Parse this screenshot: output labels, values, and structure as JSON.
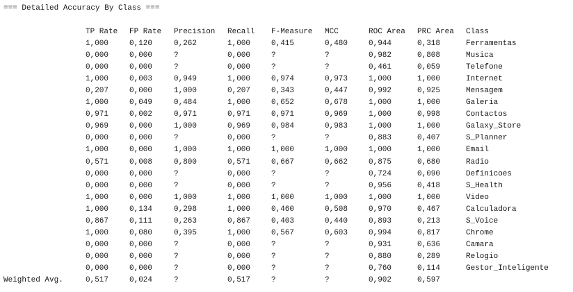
{
  "title": "=== Detailed Accuracy By Class ===",
  "headers": [
    "TP Rate",
    "FP Rate",
    "Precision",
    "Recall",
    "F-Measure",
    "MCC",
    "ROC Area",
    "PRC Area",
    "Class"
  ],
  "rows": [
    [
      "1,000",
      "0,120",
      "0,262",
      "1,000",
      "0,415",
      "0,480",
      "0,944",
      "0,318",
      "Ferramentas"
    ],
    [
      "0,000",
      "0,000",
      "?",
      "0,000",
      "?",
      "?",
      "0,982",
      "0,808",
      "Musica"
    ],
    [
      "0,000",
      "0,000",
      "?",
      "0,000",
      "?",
      "?",
      "0,461",
      "0,059",
      "Telefone"
    ],
    [
      "1,000",
      "0,003",
      "0,949",
      "1,000",
      "0,974",
      "0,973",
      "1,000",
      "1,000",
      "Internet"
    ],
    [
      "0,207",
      "0,000",
      "1,000",
      "0,207",
      "0,343",
      "0,447",
      "0,992",
      "0,925",
      "Mensagem"
    ],
    [
      "1,000",
      "0,049",
      "0,484",
      "1,000",
      "0,652",
      "0,678",
      "1,000",
      "1,000",
      "Galeria"
    ],
    [
      "0,971",
      "0,002",
      "0,971",
      "0,971",
      "0,971",
      "0,969",
      "1,000",
      "0,998",
      "Contactos"
    ],
    [
      "0,969",
      "0,000",
      "1,000",
      "0,969",
      "0,984",
      "0,983",
      "1,000",
      "1,000",
      "Galaxy_Store"
    ],
    [
      "0,000",
      "0,000",
      "?",
      "0,000",
      "?",
      "?",
      "0,883",
      "0,407",
      "S_Planner"
    ],
    [
      "1,000",
      "0,000",
      "1,000",
      "1,000",
      "1,000",
      "1,000",
      "1,000",
      "1,000",
      "Email"
    ],
    [
      "0,571",
      "0,008",
      "0,800",
      "0,571",
      "0,667",
      "0,662",
      "0,875",
      "0,680",
      "Radio"
    ],
    [
      "0,000",
      "0,000",
      "?",
      "0,000",
      "?",
      "?",
      "0,724",
      "0,090",
      "Definicoes"
    ],
    [
      "0,000",
      "0,000",
      "?",
      "0,000",
      "?",
      "?",
      "0,956",
      "0,418",
      "S_Health"
    ],
    [
      "1,000",
      "0,000",
      "1,000",
      "1,000",
      "1,000",
      "1,000",
      "1,000",
      "1,000",
      "Video"
    ],
    [
      "1,000",
      "0,134",
      "0,298",
      "1,000",
      "0,460",
      "0,508",
      "0,970",
      "0,467",
      "Calculadora"
    ],
    [
      "0,867",
      "0,111",
      "0,263",
      "0,867",
      "0,403",
      "0,440",
      "0,893",
      "0,213",
      "S_Voice"
    ],
    [
      "1,000",
      "0,080",
      "0,395",
      "1,000",
      "0,567",
      "0,603",
      "0,994",
      "0,817",
      "Chrome"
    ],
    [
      "0,000",
      "0,000",
      "?",
      "0,000",
      "?",
      "?",
      "0,931",
      "0,636",
      "Camara"
    ],
    [
      "0,000",
      "0,000",
      "?",
      "0,000",
      "?",
      "?",
      "0,880",
      "0,289",
      "Relogio"
    ],
    [
      "0,000",
      "0,000",
      "?",
      "0,000",
      "?",
      "?",
      "0,760",
      "0,114",
      "Gestor_Inteligente"
    ]
  ],
  "weighted": {
    "label": "Weighted Avg.",
    "values": [
      "0,517",
      "0,024",
      "?",
      "0,517",
      "?",
      "?",
      "0,902",
      "0,597"
    ]
  }
}
